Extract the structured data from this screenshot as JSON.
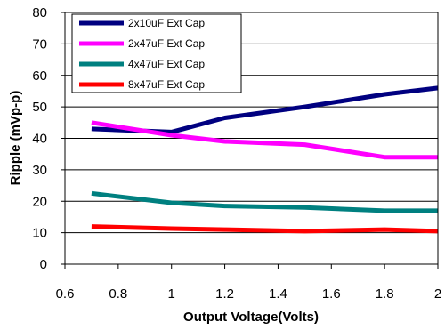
{
  "chart_data": {
    "type": "line",
    "title": "",
    "xlabel": "Output Voltage(Volts)",
    "ylabel": "Ripple (mVp-p)",
    "xlim": [
      0.6,
      2.0
    ],
    "ylim": [
      0,
      80
    ],
    "xticks": [
      "0.6",
      "0.8",
      "1",
      "1.2",
      "1.4",
      "1.6",
      "1.8",
      "2"
    ],
    "yticks": [
      "0",
      "10",
      "20",
      "30",
      "40",
      "50",
      "60",
      "70",
      "80"
    ],
    "grid": "horizontal",
    "legend_position": "top-left",
    "series": [
      {
        "name": "2x10uF Ext Cap",
        "color": "#000080",
        "x": [
          0.7,
          1.0,
          1.2,
          1.5,
          1.8,
          2.0
        ],
        "y": [
          43,
          42,
          46.5,
          50,
          54,
          56
        ]
      },
      {
        "name": "2x47uF Ext Cap",
        "color": "#ff00ff",
        "x": [
          0.7,
          1.0,
          1.2,
          1.5,
          1.8,
          2.0
        ],
        "y": [
          45,
          41,
          39,
          38,
          34,
          34
        ]
      },
      {
        "name": "4x47uF Ext Cap",
        "color": "#008080",
        "x": [
          0.7,
          1.0,
          1.2,
          1.5,
          1.8,
          2.0
        ],
        "y": [
          22.5,
          19.5,
          18.5,
          18,
          17,
          17
        ]
      },
      {
        "name": "8x47uF Ext Cap",
        "color": "#ff0000",
        "x": [
          0.7,
          1.0,
          1.2,
          1.5,
          1.8,
          2.0
        ],
        "y": [
          12,
          11.3,
          11,
          10.5,
          11,
          10.5
        ]
      }
    ]
  }
}
